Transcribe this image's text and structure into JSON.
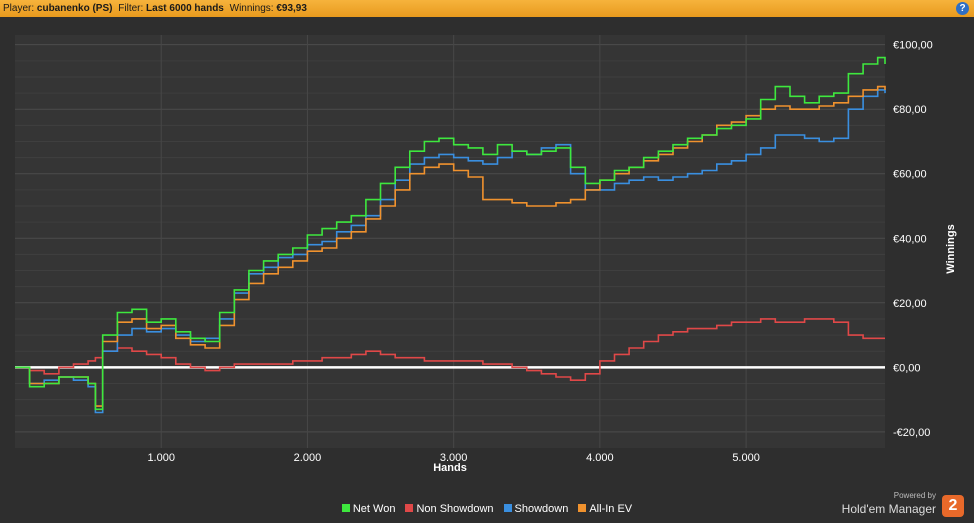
{
  "header": {
    "player_label": "Player:",
    "player_value": "cubanenko (PS)",
    "filter_label": "Filter:",
    "filter_value": "Last 6000 hands",
    "winnings_label": "Winnings:",
    "winnings_value": "€93,93",
    "help_icon": "?"
  },
  "chart_data": {
    "type": "line",
    "xlabel": "Hands",
    "ylabel": "Winnings",
    "xlim": [
      0,
      5950
    ],
    "ylim": [
      -25,
      103
    ],
    "x_ticks": [
      1000,
      2000,
      3000,
      4000,
      5000
    ],
    "x_tick_labels": [
      "1.000",
      "2.000",
      "3.000",
      "4.000",
      "5.000"
    ],
    "y_ticks": [
      -20,
      0,
      20,
      40,
      60,
      80,
      100
    ],
    "y_tick_labels": [
      "-€20,00",
      "€0,00",
      "€20,00",
      "€40,00",
      "€60,00",
      "€80,00",
      "€100,00"
    ],
    "grid": true,
    "legend": "bottom",
    "x": [
      0,
      100,
      200,
      300,
      400,
      500,
      550,
      600,
      700,
      800,
      900,
      1000,
      1100,
      1200,
      1300,
      1400,
      1500,
      1600,
      1700,
      1800,
      1900,
      2000,
      2100,
      2200,
      2300,
      2400,
      2500,
      2600,
      2700,
      2800,
      2900,
      3000,
      3100,
      3200,
      3300,
      3400,
      3500,
      3600,
      3700,
      3800,
      3900,
      4000,
      4100,
      4200,
      4300,
      4400,
      4500,
      4600,
      4700,
      4800,
      4900,
      5000,
      5100,
      5200,
      5300,
      5400,
      5500,
      5600,
      5700,
      5800,
      5900,
      5950
    ],
    "series": [
      {
        "name": "Net Won",
        "color": "#3ee83e",
        "values": [
          0,
          -6,
          -5,
          -3,
          -3,
          -5,
          -13,
          10,
          17,
          18,
          14,
          15,
          11,
          9,
          8,
          17,
          24,
          30,
          33,
          35,
          37,
          41,
          43,
          45,
          47,
          52,
          57,
          62,
          67,
          70,
          71,
          69,
          68,
          66,
          69,
          67,
          66,
          67,
          68,
          62,
          57,
          58,
          61,
          62,
          65,
          67,
          69,
          71,
          72,
          74,
          75,
          77,
          83,
          87,
          84,
          82,
          84,
          85,
          91,
          94,
          96,
          94
        ]
      },
      {
        "name": "Non Showdown",
        "color": "#e04848",
        "values": [
          0,
          -1,
          -2,
          0,
          1,
          2,
          3,
          5,
          6,
          5,
          4,
          3,
          1,
          0,
          -1,
          0,
          1,
          1,
          1,
          1,
          2,
          2,
          3,
          3,
          4,
          5,
          4,
          3,
          3,
          2,
          2,
          2,
          2,
          1,
          1,
          0,
          -1,
          -2,
          -3,
          -4,
          -2,
          2,
          4,
          6,
          8,
          10,
          11,
          12,
          12,
          13,
          14,
          14,
          15,
          14,
          14,
          15,
          15,
          14,
          10,
          9,
          9,
          9
        ]
      },
      {
        "name": "Showdown",
        "color": "#3a8fe0",
        "values": [
          0,
          -5,
          -4,
          -3,
          -4,
          -6,
          -14,
          5,
          10,
          12,
          11,
          12,
          10,
          8,
          9,
          15,
          23,
          29,
          31,
          34,
          35,
          38,
          39,
          42,
          44,
          47,
          52,
          58,
          63,
          65,
          66,
          65,
          64,
          63,
          65,
          67,
          66,
          68,
          69,
          60,
          55,
          55,
          57,
          58,
          59,
          58,
          59,
          60,
          61,
          63,
          64,
          66,
          68,
          72,
          72,
          71,
          70,
          71,
          80,
          84,
          86,
          85
        ]
      },
      {
        "name": "All-In EV",
        "color": "#f0922e",
        "values": [
          0,
          -5,
          -5,
          -3,
          -3,
          -5,
          -12,
          8,
          14,
          15,
          12,
          13,
          9,
          7,
          6,
          13,
          21,
          26,
          29,
          31,
          33,
          36,
          37,
          40,
          42,
          46,
          50,
          55,
          60,
          62,
          63,
          61,
          59,
          52,
          52,
          51,
          50,
          50,
          51,
          52,
          55,
          58,
          60,
          62,
          64,
          66,
          68,
          70,
          72,
          75,
          76,
          78,
          80,
          81,
          80,
          80,
          81,
          82,
          84,
          86,
          87,
          86
        ]
      }
    ]
  },
  "branding": {
    "powered_by": "Powered by",
    "product": "Hold'em Manager",
    "version_badge": "2"
  }
}
